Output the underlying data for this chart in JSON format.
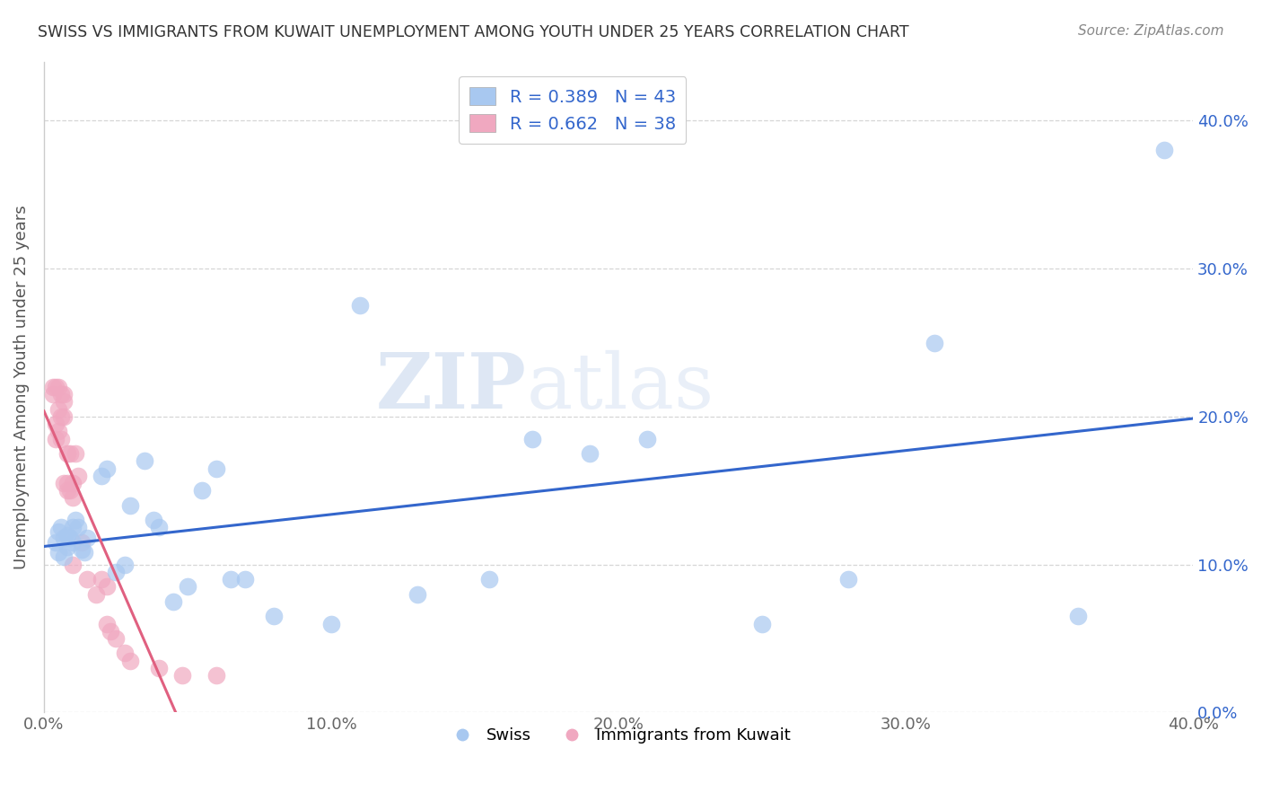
{
  "title": "SWISS VS IMMIGRANTS FROM KUWAIT UNEMPLOYMENT AMONG YOUTH UNDER 25 YEARS CORRELATION CHART",
  "source": "Source: ZipAtlas.com",
  "ylabel": "Unemployment Among Youth under 25 years",
  "xlim": [
    0.0,
    0.4
  ],
  "ylim": [
    0.0,
    0.44
  ],
  "swiss_R": "0.389",
  "swiss_N": "43",
  "kuwait_R": "0.662",
  "kuwait_N": "38",
  "swiss_color": "#a8c8f0",
  "kuwait_color": "#f0a8c0",
  "swiss_line_color": "#3366cc",
  "kuwait_line_color": "#e06080",
  "watermark_zip": "ZIP",
  "watermark_atlas": "atlas",
  "swiss_x": [
    0.004,
    0.005,
    0.005,
    0.006,
    0.007,
    0.007,
    0.008,
    0.008,
    0.009,
    0.01,
    0.01,
    0.011,
    0.012,
    0.013,
    0.014,
    0.015,
    0.02,
    0.022,
    0.025,
    0.028,
    0.03,
    0.035,
    0.038,
    0.04,
    0.045,
    0.05,
    0.055,
    0.06,
    0.065,
    0.07,
    0.08,
    0.1,
    0.11,
    0.13,
    0.155,
    0.17,
    0.19,
    0.21,
    0.25,
    0.28,
    0.31,
    0.36,
    0.39
  ],
  "swiss_y": [
    0.115,
    0.122,
    0.108,
    0.125,
    0.118,
    0.105,
    0.12,
    0.112,
    0.118,
    0.115,
    0.125,
    0.13,
    0.125,
    0.11,
    0.108,
    0.118,
    0.16,
    0.165,
    0.095,
    0.1,
    0.14,
    0.17,
    0.13,
    0.125,
    0.075,
    0.085,
    0.15,
    0.165,
    0.09,
    0.09,
    0.065,
    0.06,
    0.275,
    0.08,
    0.09,
    0.185,
    0.175,
    0.185,
    0.06,
    0.09,
    0.25,
    0.065,
    0.38
  ],
  "kuwait_x": [
    0.003,
    0.003,
    0.004,
    0.004,
    0.004,
    0.005,
    0.005,
    0.005,
    0.006,
    0.006,
    0.006,
    0.007,
    0.007,
    0.007,
    0.007,
    0.008,
    0.008,
    0.008,
    0.009,
    0.009,
    0.01,
    0.01,
    0.01,
    0.011,
    0.012,
    0.013,
    0.015,
    0.018,
    0.02,
    0.022,
    0.022,
    0.023,
    0.025,
    0.028,
    0.03,
    0.04,
    0.048,
    0.06
  ],
  "kuwait_y": [
    0.22,
    0.215,
    0.22,
    0.195,
    0.185,
    0.22,
    0.205,
    0.19,
    0.215,
    0.2,
    0.185,
    0.21,
    0.215,
    0.2,
    0.155,
    0.175,
    0.155,
    0.15,
    0.175,
    0.15,
    0.155,
    0.145,
    0.1,
    0.175,
    0.16,
    0.115,
    0.09,
    0.08,
    0.09,
    0.085,
    0.06,
    0.055,
    0.05,
    0.04,
    0.035,
    0.03,
    0.025,
    0.025
  ]
}
